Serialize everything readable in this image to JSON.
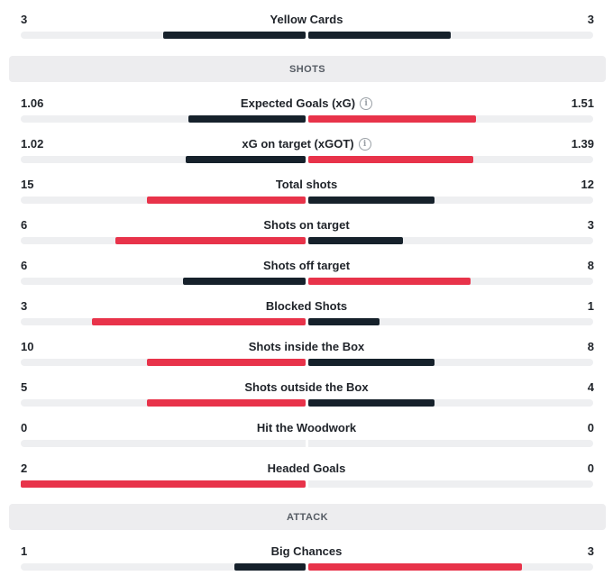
{
  "colors": {
    "dark": "#16212b",
    "red": "#e8334a",
    "track": "#eeeff1"
  },
  "stats_top": [
    {
      "label": "Yellow Cards",
      "home": "3",
      "away": "3",
      "home_ratio": 0.5,
      "away_ratio": 0.5,
      "home_color": "dark",
      "away_color": "dark"
    }
  ],
  "sections": [
    {
      "title": "SHOTS",
      "stats": [
        {
          "label": "Expected Goals (xG)",
          "info": true,
          "home": "1.06",
          "away": "1.51",
          "home_ratio": 0.41,
          "away_ratio": 0.59,
          "home_color": "dark",
          "away_color": "red"
        },
        {
          "label": "xG on target (xGOT)",
          "info": true,
          "home": "1.02",
          "away": "1.39",
          "home_ratio": 0.42,
          "away_ratio": 0.58,
          "home_color": "dark",
          "away_color": "red"
        },
        {
          "label": "Total shots",
          "home": "15",
          "away": "12",
          "home_ratio": 0.556,
          "away_ratio": 0.444,
          "home_color": "red",
          "away_color": "dark"
        },
        {
          "label": "Shots on target",
          "home": "6",
          "away": "3",
          "home_ratio": 0.667,
          "away_ratio": 0.333,
          "home_color": "red",
          "away_color": "dark"
        },
        {
          "label": "Shots off target",
          "home": "6",
          "away": "8",
          "home_ratio": 0.429,
          "away_ratio": 0.571,
          "home_color": "dark",
          "away_color": "red"
        },
        {
          "label": "Blocked Shots",
          "home": "3",
          "away": "1",
          "home_ratio": 0.75,
          "away_ratio": 0.25,
          "home_color": "red",
          "away_color": "dark"
        },
        {
          "label": "Shots inside the Box",
          "home": "10",
          "away": "8",
          "home_ratio": 0.556,
          "away_ratio": 0.444,
          "home_color": "red",
          "away_color": "dark"
        },
        {
          "label": "Shots outside the Box",
          "home": "5",
          "away": "4",
          "home_ratio": 0.556,
          "away_ratio": 0.444,
          "home_color": "red",
          "away_color": "dark"
        },
        {
          "label": "Hit the Woodwork",
          "home": "0",
          "away": "0",
          "home_ratio": 0,
          "away_ratio": 0,
          "home_color": "dark",
          "away_color": "dark"
        },
        {
          "label": "Headed Goals",
          "home": "2",
          "away": "0",
          "home_ratio": 1.0,
          "away_ratio": 0,
          "home_color": "red",
          "away_color": "dark"
        }
      ]
    },
    {
      "title": "ATTACK",
      "stats": [
        {
          "label": "Big Chances",
          "home": "1",
          "away": "3",
          "home_ratio": 0.25,
          "away_ratio": 0.75,
          "home_color": "dark",
          "away_color": "red"
        }
      ]
    }
  ]
}
